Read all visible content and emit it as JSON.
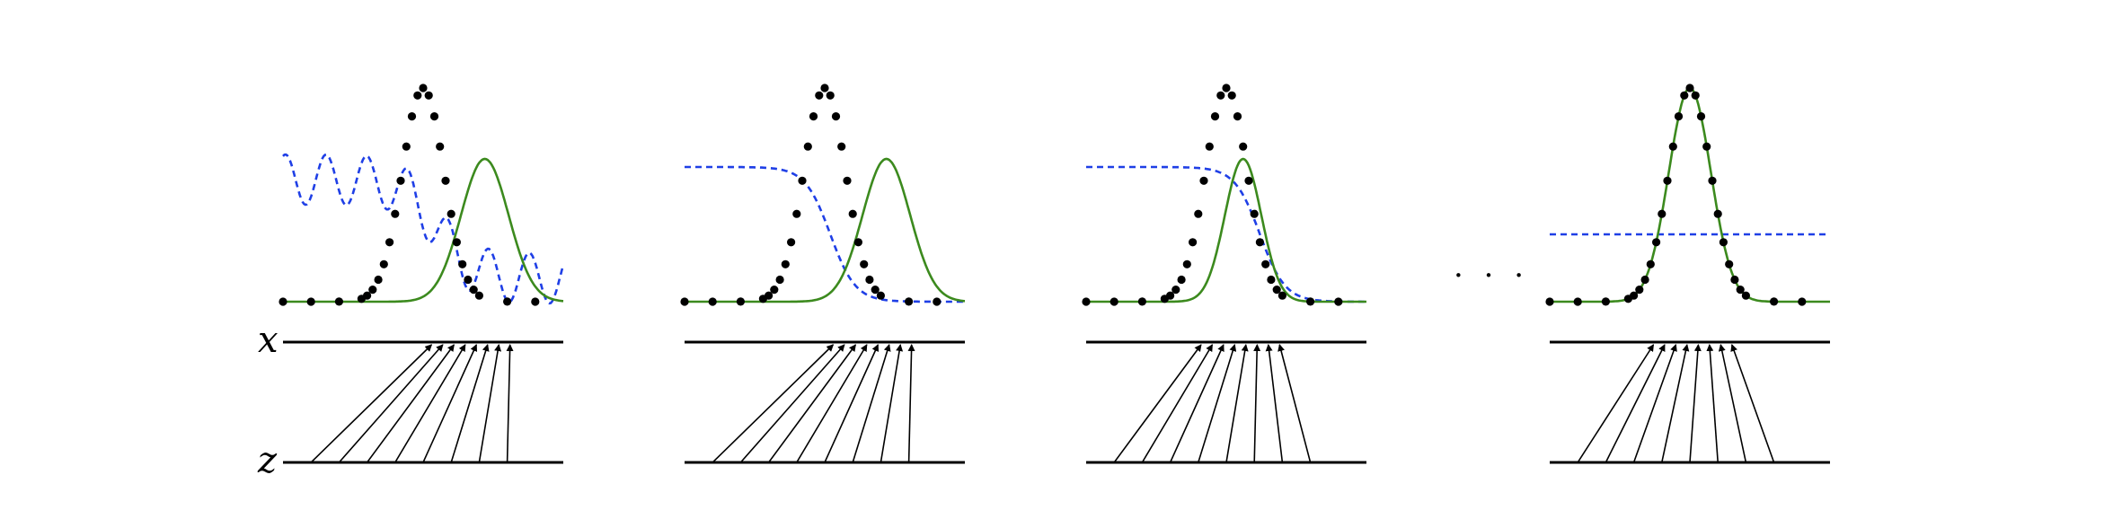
{
  "figure": {
    "x_label": "x",
    "z_label": "z",
    "ellipsis": "· · ·"
  },
  "colors": {
    "model_density": "#3c8a1e",
    "discriminator": "#1f3fe6",
    "data_points": "#000000",
    "arrows": "#000000"
  },
  "panels": [
    {
      "id": "a",
      "green_mu": 0.72,
      "green_sigma": 0.085,
      "target_mu": 0.5,
      "target_sigma": 0.075,
      "blue": "wavy",
      "arrow_tips": [
        0.53,
        0.57,
        0.61,
        0.65,
        0.69,
        0.73,
        0.77,
        0.81
      ],
      "show_axis_labels": true
    },
    {
      "id": "b",
      "green_mu": 0.72,
      "green_sigma": 0.085,
      "target_mu": 0.5,
      "target_sigma": 0.075,
      "blue": "sigmoid",
      "arrow_tips": [
        0.53,
        0.57,
        0.61,
        0.65,
        0.69,
        0.73,
        0.77,
        0.81
      ],
      "show_axis_labels": false
    },
    {
      "id": "c",
      "green_mu": 0.56,
      "green_sigma": 0.065,
      "target_mu": 0.5,
      "target_sigma": 0.075,
      "blue": "sigmoid",
      "arrow_tips": [
        0.41,
        0.45,
        0.49,
        0.53,
        0.57,
        0.61,
        0.65,
        0.69
      ],
      "show_axis_labels": false
    },
    {
      "id": "d",
      "green_mu": 0.5,
      "green_sigma": 0.075,
      "target_mu": 0.5,
      "target_sigma": 0.075,
      "blue": "flat",
      "arrow_tips": [
        0.37,
        0.41,
        0.45,
        0.49,
        0.53,
        0.57,
        0.61,
        0.65
      ],
      "show_axis_labels": false
    }
  ]
}
